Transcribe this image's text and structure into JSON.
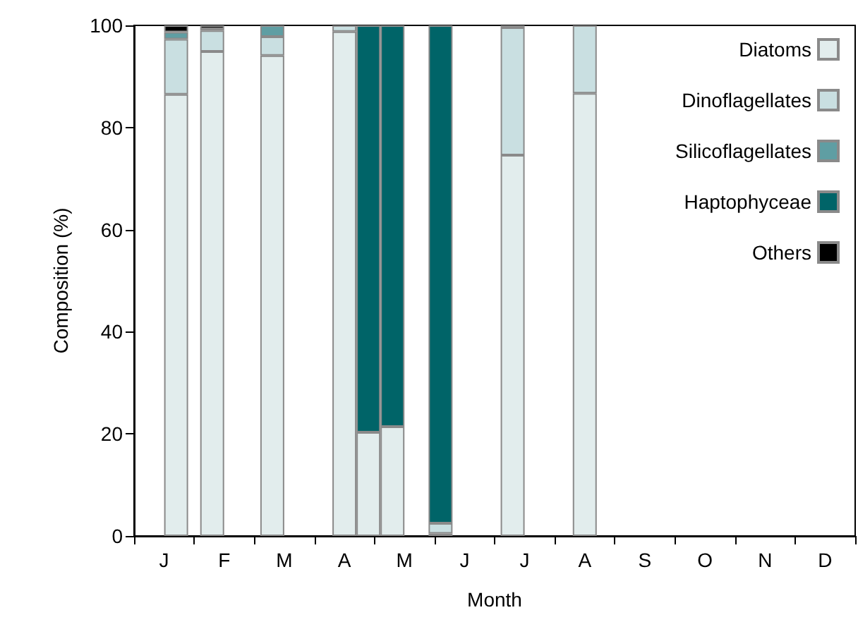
{
  "chart_data": {
    "type": "bar",
    "stacked": true,
    "categories": [
      null,
      null,
      "J",
      null,
      null,
      null,
      null,
      "F",
      null,
      null,
      null,
      null,
      "M",
      null,
      null,
      null,
      null,
      "A",
      null,
      null,
      null,
      null,
      "M",
      null,
      null,
      null,
      null,
      "J",
      null,
      null,
      null,
      null,
      "J",
      null,
      null,
      null,
      null,
      "A",
      null,
      null,
      null,
      null,
      "S",
      null,
      null,
      null,
      null,
      "O",
      null,
      null,
      null,
      null,
      "N",
      null,
      null,
      null,
      null,
      "D",
      null,
      null
    ],
    "series": [
      {
        "name": "Diatoms",
        "color": "#e2eded",
        "values": [
          null,
          null,
          null,
          86.5,
          null,
          null,
          94.9,
          null,
          null,
          null,
          null,
          94.1,
          null,
          null,
          null,
          null,
          null,
          98.8,
          null,
          20.3,
          null,
          21.4,
          null,
          null,
          null,
          0.5,
          null,
          null,
          null,
          null,
          null,
          74.6,
          null,
          null,
          null,
          null,
          null,
          86.7,
          null,
          null,
          null,
          null,
          null,
          null,
          null,
          null,
          null,
          null,
          null,
          null,
          null,
          null,
          null,
          null,
          null,
          null,
          null,
          null,
          null,
          null
        ]
      },
      {
        "name": "Dinoflagellates",
        "color": "#c9dfe1",
        "values": [
          null,
          null,
          null,
          10.8,
          null,
          null,
          4.1,
          null,
          null,
          null,
          null,
          3.7,
          null,
          null,
          null,
          null,
          null,
          1.2,
          null,
          null,
          null,
          null,
          null,
          null,
          null,
          2.0,
          null,
          null,
          null,
          null,
          null,
          25.0,
          null,
          null,
          null,
          null,
          null,
          13.3,
          null,
          null,
          null,
          null,
          null,
          null,
          null,
          null,
          null,
          null,
          null,
          null,
          null,
          null,
          null,
          null,
          null,
          null,
          null,
          null,
          null,
          null
        ]
      },
      {
        "name": "Silicoflagellates",
        "color": "#5f9ea3",
        "values": [
          null,
          null,
          null,
          1.4,
          null,
          null,
          0.3,
          null,
          null,
          null,
          null,
          2.2,
          null,
          null,
          null,
          null,
          null,
          null,
          null,
          null,
          null,
          null,
          null,
          null,
          null,
          null,
          null,
          null,
          null,
          null,
          null,
          null,
          null,
          null,
          null,
          null,
          null,
          null,
          null,
          null,
          null,
          null,
          null,
          null,
          null,
          null,
          null,
          null,
          null,
          null,
          null,
          null,
          null,
          null,
          null,
          null,
          null,
          null,
          null,
          null
        ]
      },
      {
        "name": "Haptophyceae",
        "color": "#006468",
        "values": [
          null,
          null,
          null,
          null,
          null,
          null,
          null,
          null,
          null,
          null,
          null,
          null,
          null,
          null,
          null,
          null,
          null,
          null,
          null,
          79.7,
          null,
          78.6,
          null,
          null,
          null,
          97.5,
          null,
          null,
          null,
          null,
          null,
          null,
          null,
          null,
          null,
          null,
          null,
          null,
          null,
          null,
          null,
          null,
          null,
          null,
          null,
          null,
          null,
          null,
          null,
          null,
          null,
          null,
          null,
          null,
          null,
          null,
          null,
          null,
          null,
          null
        ]
      },
      {
        "name": "Others",
        "color": "#000000",
        "values": [
          null,
          null,
          null,
          1.3,
          null,
          null,
          0.7,
          null,
          null,
          null,
          null,
          null,
          null,
          null,
          null,
          null,
          null,
          null,
          null,
          null,
          null,
          null,
          null,
          null,
          null,
          null,
          null,
          null,
          null,
          null,
          null,
          0.4,
          null,
          null,
          null,
          null,
          null,
          null,
          null,
          null,
          null,
          null,
          null,
          null,
          null,
          null,
          null,
          null,
          null,
          null,
          null,
          null,
          null,
          null,
          null,
          null,
          null,
          null,
          null,
          null
        ]
      }
    ],
    "xlabel": "Month",
    "ylabel": "Composition (%)",
    "ylim": [
      0,
      100
    ],
    "yticks": [
      0,
      20,
      40,
      60,
      80,
      100
    ],
    "grid": false,
    "legend": "top right"
  }
}
